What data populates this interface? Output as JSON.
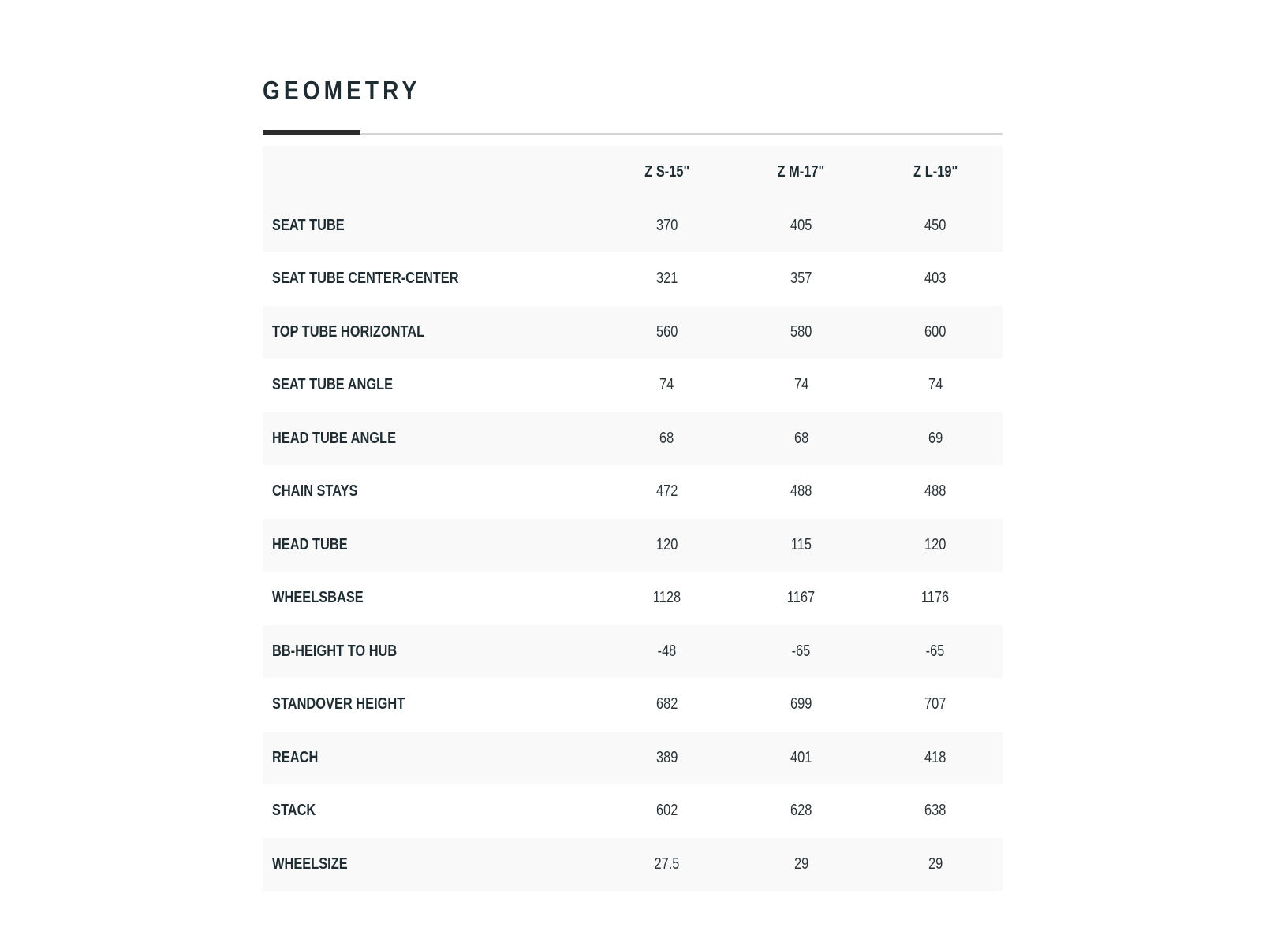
{
  "title": "GEOMETRY",
  "columns": [
    "Z S-15\"",
    "Z M-17\"",
    "Z L-19\""
  ],
  "rows": [
    {
      "label": "SEAT TUBE",
      "values": [
        "370",
        "405",
        "450"
      ]
    },
    {
      "label": "SEAT TUBE CENTER-CENTER",
      "values": [
        "321",
        "357",
        "403"
      ]
    },
    {
      "label": "TOP TUBE HORIZONTAL",
      "values": [
        "560",
        "580",
        "600"
      ]
    },
    {
      "label": "SEAT TUBE ANGLE",
      "values": [
        "74",
        "74",
        "74"
      ]
    },
    {
      "label": "HEAD TUBE ANGLE",
      "values": [
        "68",
        "68",
        "69"
      ]
    },
    {
      "label": "CHAIN STAYS",
      "values": [
        "472",
        "488",
        "488"
      ]
    },
    {
      "label": "HEAD TUBE",
      "values": [
        "120",
        "115",
        "120"
      ]
    },
    {
      "label": "WHEELSBASE",
      "values": [
        "1128",
        "1167",
        "1176"
      ]
    },
    {
      "label": "BB-HEIGHT TO HUB",
      "values": [
        "-48",
        "-65",
        "-65"
      ]
    },
    {
      "label": "STANDOVER HEIGHT",
      "values": [
        "682",
        "699",
        "707"
      ]
    },
    {
      "label": "REACH",
      "values": [
        "389",
        "401",
        "418"
      ]
    },
    {
      "label": "STACK",
      "values": [
        "602",
        "628",
        "638"
      ]
    },
    {
      "label": "WHEELSIZE",
      "values": [
        "27.5",
        "29",
        "29"
      ]
    }
  ]
}
